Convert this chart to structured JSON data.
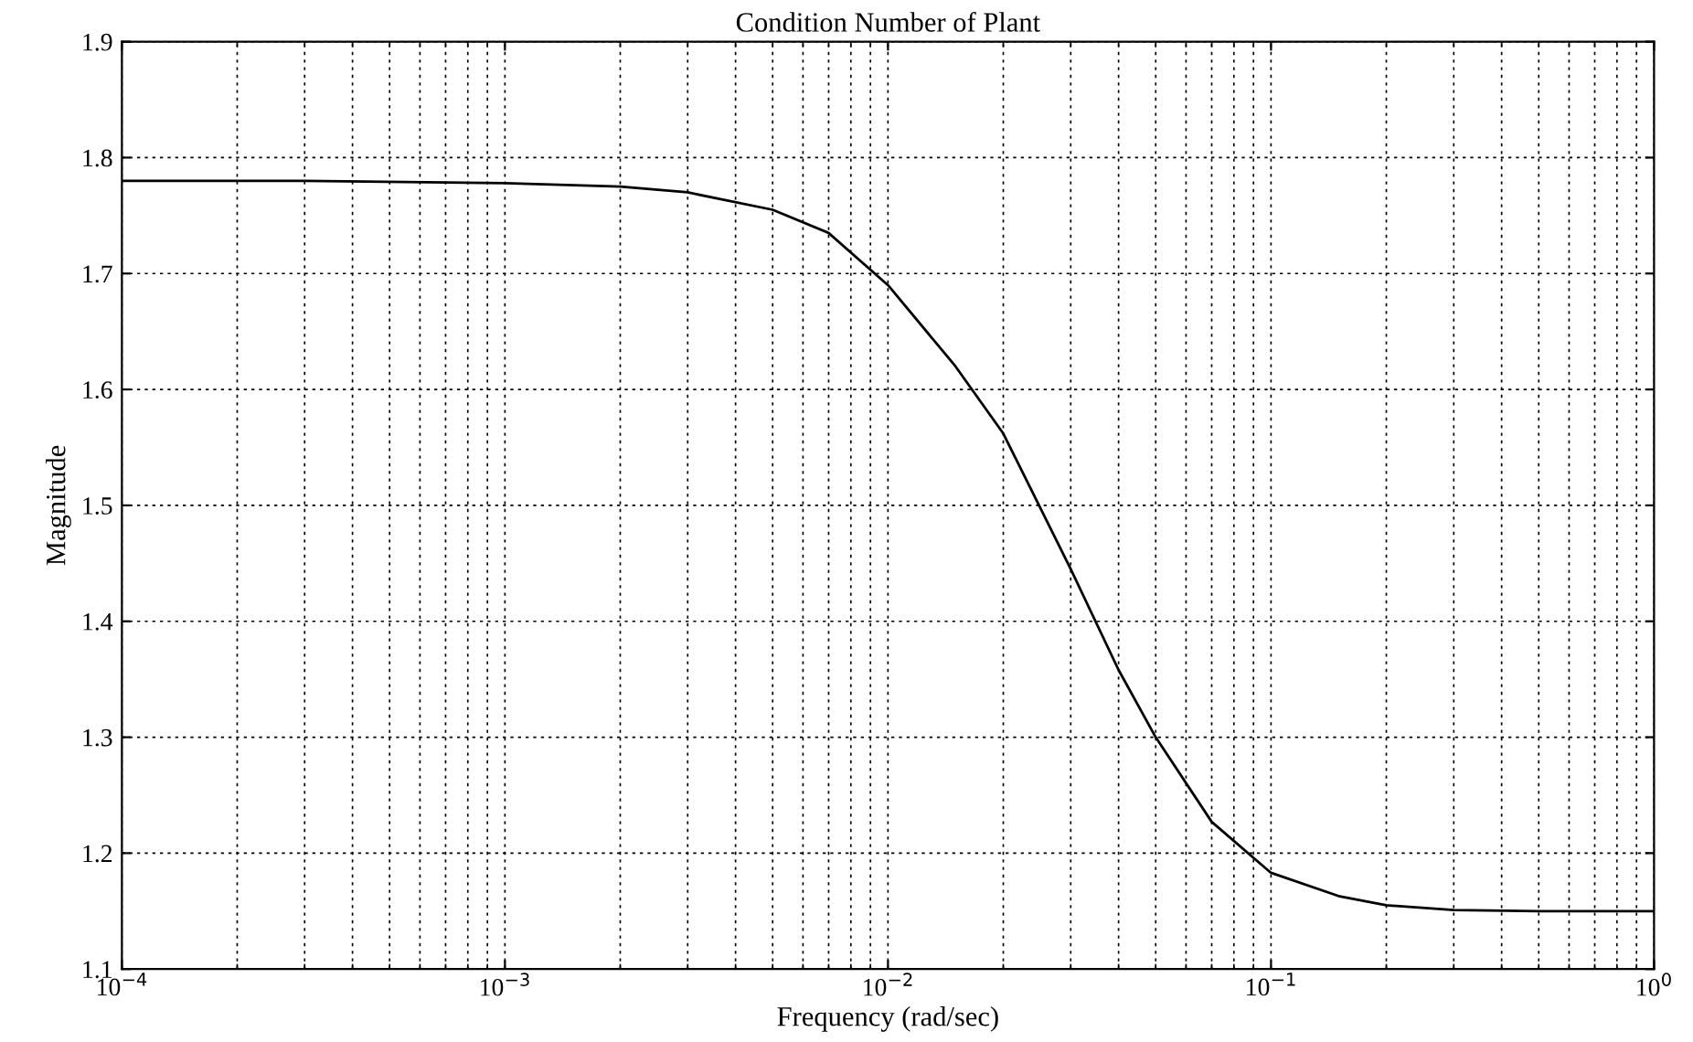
{
  "chart_data": {
    "type": "line",
    "title": "Condition Number of Plant",
    "xlabel": "Frequency (rad/sec)",
    "ylabel": "Magnitude",
    "log": "x",
    "grid": true,
    "marker": "none",
    "line_style": "solid",
    "xlim": [
      0.0001,
      1
    ],
    "ylim": [
      1.1,
      1.9
    ],
    "xticks": [
      {
        "value": 0.0001,
        "label": "10$^{−4}$"
      },
      {
        "value": 0.001,
        "label": "10$^{−3}$"
      },
      {
        "value": 0.01,
        "label": "10$^{−2}$"
      },
      {
        "value": 0.1,
        "label": "10$^{−1}$"
      },
      {
        "value": 1,
        "label": "10$^{0}$"
      }
    ],
    "yticks": [
      1.1,
      1.2,
      1.3,
      1.4,
      1.5,
      1.6,
      1.7,
      1.8,
      1.9
    ],
    "series": [
      {
        "color": "#000000",
        "x": [
          0.0001,
          0.0003,
          0.001,
          0.002,
          0.003,
          0.005,
          0.007,
          0.01,
          0.015,
          0.02,
          0.03,
          0.04,
          0.05,
          0.07,
          0.1,
          0.15,
          0.2,
          0.3,
          0.5,
          1
        ],
        "values": [
          1.78,
          1.78,
          1.778,
          1.775,
          1.77,
          1.755,
          1.735,
          1.69,
          1.62,
          1.562,
          1.445,
          1.358,
          1.3,
          1.227,
          1.183,
          1.163,
          1.155,
          1.151,
          1.15,
          1.15
        ]
      }
    ]
  }
}
